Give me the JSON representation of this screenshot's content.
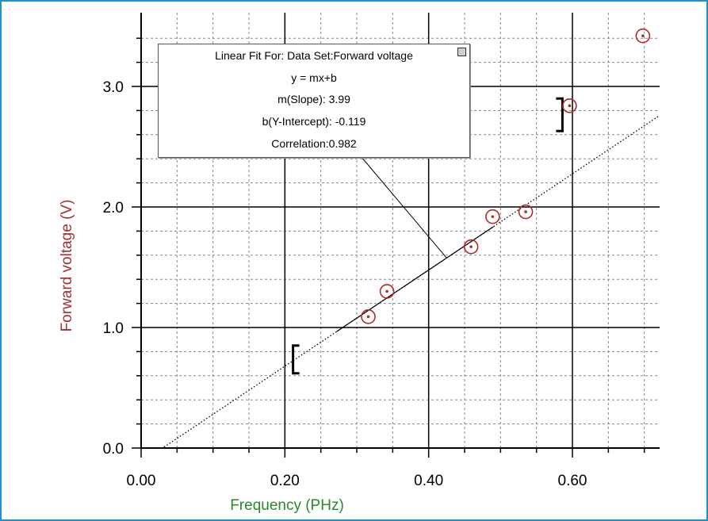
{
  "chart_data": {
    "type": "scatter",
    "xlabel": "Frequency (PHz)",
    "ylabel": "Forward voltage (V)",
    "xlim": [
      0.0,
      0.72
    ],
    "ylim": [
      0.0,
      3.5
    ],
    "x_ticks": [
      "0.00",
      "0.20",
      "0.40",
      "0.60"
    ],
    "x_tick_values": [
      0.0,
      0.2,
      0.4,
      0.6
    ],
    "y_ticks": [
      "0.0",
      "1.0",
      "2.0",
      "3.0"
    ],
    "y_tick_values": [
      0.0,
      1.0,
      2.0,
      3.0
    ],
    "grid": true,
    "series": [
      {
        "name": "Forward voltage",
        "x": [
          0.316,
          0.342,
          0.459,
          0.489,
          0.535,
          0.596,
          0.698
        ],
        "y": [
          1.09,
          1.3,
          1.67,
          1.92,
          1.96,
          2.84,
          3.42
        ]
      }
    ],
    "fit": {
      "type": "linear",
      "slope": 3.99,
      "intercept": -0.119,
      "range_x": [
        0.032,
        0.72
      ]
    },
    "fit_range_brackets": {
      "x": [
        0.272,
        0.585
      ]
    },
    "colors": {
      "marker": "#b02a2a",
      "ylabel": "#a03030",
      "xlabel": "#2a8a2a",
      "frame": "#1e8fcf"
    }
  },
  "fit_box": {
    "title": "Linear Fit For:  Data Set:Forward voltage",
    "equation": "y = mx+b",
    "slope": "m(Slope): 3.99",
    "intercept": "b(Y-Intercept): -0.119",
    "correlation": "Correlation:0.982"
  }
}
